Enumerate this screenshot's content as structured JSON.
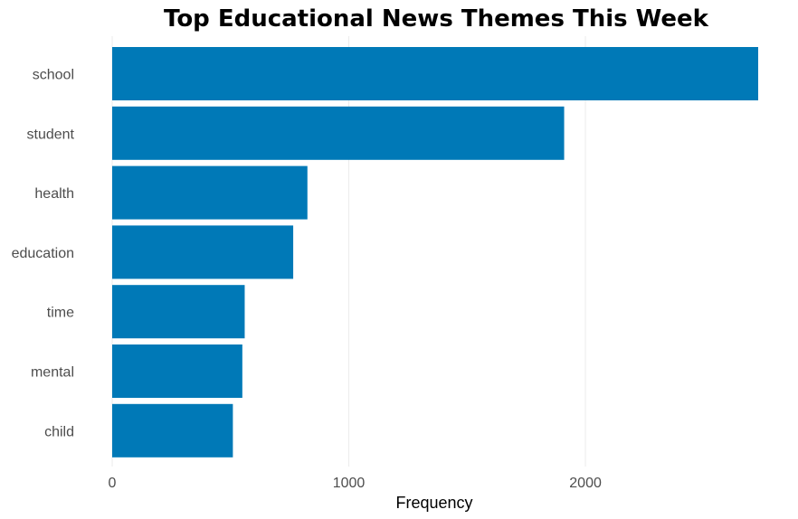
{
  "chart_data": {
    "type": "bar",
    "orientation": "horizontal",
    "title": "Top Educational News Themes This Week",
    "xlabel": "Frequency",
    "ylabel": "",
    "categories": [
      "school",
      "student",
      "health",
      "education",
      "time",
      "mental",
      "child"
    ],
    "values": [
      2730,
      1910,
      825,
      765,
      560,
      550,
      510
    ],
    "xlim": [
      0,
      2730
    ],
    "xticks": [
      0,
      1000,
      2000
    ],
    "bar_color": "#0079b7",
    "grid": true,
    "legend": "none"
  }
}
